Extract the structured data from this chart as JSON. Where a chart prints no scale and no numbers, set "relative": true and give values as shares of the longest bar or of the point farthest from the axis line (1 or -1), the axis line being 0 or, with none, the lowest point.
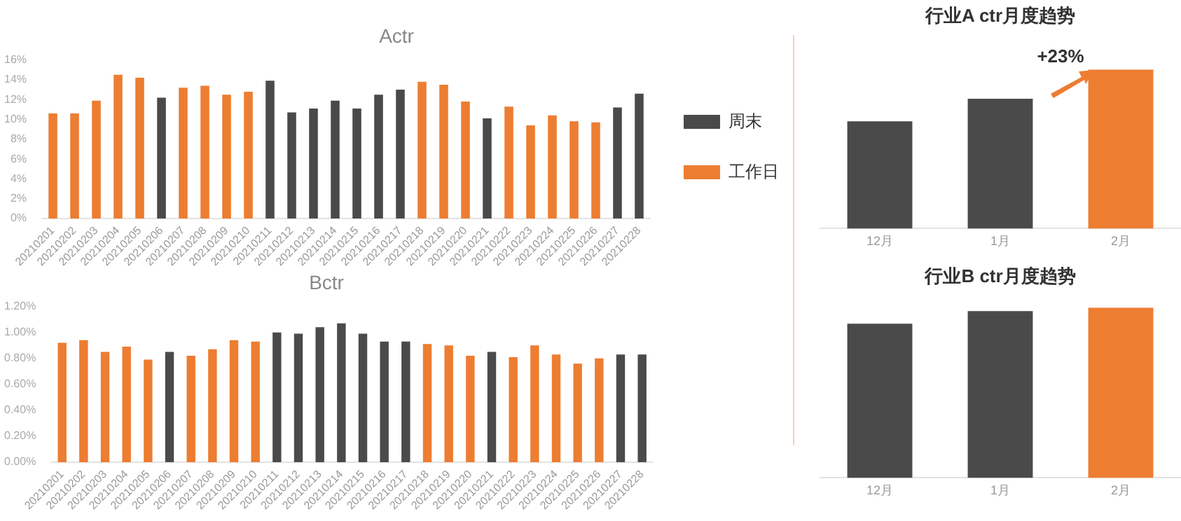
{
  "chart_data": [
    {
      "type": "bar",
      "title": "Actr",
      "categories": [
        "20210201",
        "20210202",
        "20210203",
        "20210204",
        "20210205",
        "20210206",
        "20210207",
        "20210208",
        "20210209",
        "20210210",
        "20210211",
        "20210212",
        "20210213",
        "20210214",
        "20210215",
        "20210216",
        "20210217",
        "20210218",
        "20210219",
        "20210220",
        "20210221",
        "20210222",
        "20210223",
        "20210224",
        "20210225",
        "20210226",
        "20210227",
        "20210228"
      ],
      "legend": "right",
      "series": [
        {
          "name": "周末",
          "color": "#4a4a4a",
          "values": [
            null,
            null,
            null,
            null,
            null,
            12.2,
            null,
            null,
            null,
            null,
            13.9,
            10.7,
            11.1,
            11.9,
            11.1,
            12.5,
            13.0,
            null,
            null,
            null,
            10.1,
            null,
            null,
            null,
            null,
            null,
            11.2,
            12.6
          ]
        },
        {
          "name": "工作日",
          "color": "#ed7d31",
          "values": [
            10.6,
            10.6,
            11.9,
            14.5,
            14.2,
            null,
            13.2,
            13.4,
            12.5,
            12.8,
            null,
            null,
            null,
            null,
            null,
            null,
            null,
            13.8,
            13.5,
            11.8,
            null,
            11.3,
            9.4,
            10.4,
            9.8,
            9.7,
            null,
            null
          ]
        }
      ],
      "ylim": [
        0,
        16
      ],
      "yticks": [
        {
          "value": 0,
          "label": "0%"
        },
        {
          "value": 2,
          "label": "2%"
        },
        {
          "value": 4,
          "label": "4%"
        },
        {
          "value": 6,
          "label": "6%"
        },
        {
          "value": 8,
          "label": "8%"
        },
        {
          "value": 10,
          "label": "10%"
        },
        {
          "value": 12,
          "label": "12%"
        },
        {
          "value": 14,
          "label": "14%"
        },
        {
          "value": 16,
          "label": "16%"
        }
      ]
    },
    {
      "type": "bar",
      "title": "Bctr",
      "categories": [
        "20210201",
        "20210202",
        "20210203",
        "20210204",
        "20210205",
        "20210206",
        "20210207",
        "20210208",
        "20210209",
        "20210210",
        "20210211",
        "20210212",
        "20210213",
        "20210214",
        "20210215",
        "20210216",
        "20210217",
        "20210218",
        "20210219",
        "20210220",
        "20210221",
        "20210222",
        "20210223",
        "20210224",
        "20210225",
        "20210226",
        "20210227",
        "20210228"
      ],
      "series": [
        {
          "color": "#4a4a4a",
          "values": [
            null,
            null,
            null,
            null,
            null,
            0.85,
            null,
            null,
            null,
            null,
            1.0,
            0.99,
            1.04,
            1.07,
            0.99,
            0.93,
            0.93,
            null,
            null,
            null,
            0.85,
            null,
            null,
            null,
            null,
            null,
            0.83,
            0.83
          ]
        },
        {
          "color": "#ed7d31",
          "values": [
            0.92,
            0.94,
            0.85,
            0.89,
            0.79,
            null,
            0.82,
            0.87,
            0.94,
            0.93,
            null,
            null,
            null,
            null,
            null,
            null,
            null,
            0.91,
            0.9,
            0.82,
            null,
            0.81,
            0.9,
            0.83,
            0.76,
            0.8,
            null,
            null
          ]
        }
      ],
      "ylim": [
        0,
        1.2
      ],
      "yticks": [
        {
          "value": 0,
          "label": "0.00%"
        },
        {
          "value": 0.2,
          "label": "0.20%"
        },
        {
          "value": 0.4,
          "label": "0.40%"
        },
        {
          "value": 0.6,
          "label": "0.60%"
        },
        {
          "value": 0.8,
          "label": "0.80%"
        },
        {
          "value": 1.0,
          "label": "1.00%"
        },
        {
          "value": 1.2,
          "label": "1.20%"
        }
      ]
    },
    {
      "type": "bar",
      "title": "行业A ctr月度趋势",
      "categories": [
        "12月",
        "1月",
        "2月"
      ],
      "relative": true,
      "values": [
        0.674,
        0.816,
        1
      ],
      "colors": [
        "#4a4a4a",
        "#4a4a4a",
        "#ed7d31"
      ],
      "annotations": [
        "+23%"
      ]
    },
    {
      "type": "bar",
      "title": "行业B ctr月度趋势",
      "categories": [
        "12月",
        "1月",
        "2月"
      ],
      "relative": true,
      "values": [
        0.905,
        0.979,
        1
      ],
      "colors": [
        "#4a4a4a",
        "#4a4a4a",
        "#ed7d31"
      ]
    }
  ]
}
